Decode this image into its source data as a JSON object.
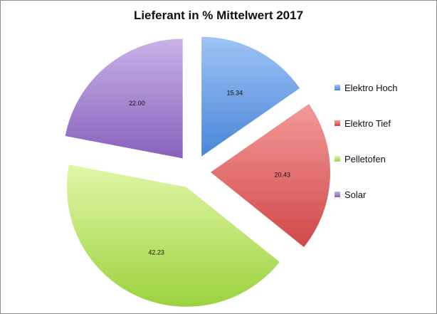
{
  "chart_data": {
    "type": "pie",
    "title": "Lieferant in % Mittelwert 2017",
    "categories": [
      "Elektro Hoch",
      "Elektro Tief",
      "Pelletofen",
      "Solar"
    ],
    "values": [
      15.34,
      20.43,
      42.23,
      22.0
    ],
    "labels": [
      "15.34",
      "20.43",
      "42.23",
      "22.00"
    ],
    "exploded": true,
    "legend": "right",
    "colors": {
      "Elektro Hoch": [
        "#9ec3f5",
        "#4a86d8"
      ],
      "Elektro Tief": [
        "#f39a98",
        "#d04848"
      ],
      "Pelletofen": [
        "#e0f7a8",
        "#9bd23e"
      ],
      "Solar": [
        "#c9b2e8",
        "#8762bc"
      ]
    }
  }
}
